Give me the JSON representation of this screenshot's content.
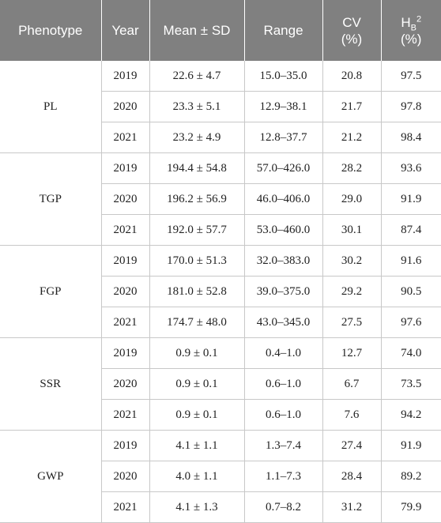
{
  "header": {
    "phenotype": "Phenotype",
    "year": "Year",
    "mean_sd": "Mean ± SD",
    "range": "Range",
    "cv_line1": "CV",
    "cv_line2": "(%)",
    "hb_base": "H",
    "hb_sub": "B",
    "hb_sup": "2",
    "hb_line2": "(%)"
  },
  "groups": [
    {
      "phenotype": "PL",
      "rows": [
        {
          "year": "2019",
          "mean": "22.6 ± 4.7",
          "range": "15.0–35.0",
          "cv": "20.8",
          "hb": "97.5"
        },
        {
          "year": "2020",
          "mean": "23.3 ± 5.1",
          "range": "12.9–38.1",
          "cv": "21.7",
          "hb": "97.8"
        },
        {
          "year": "2021",
          "mean": "23.2 ± 4.9",
          "range": "12.8–37.7",
          "cv": "21.2",
          "hb": "98.4"
        }
      ]
    },
    {
      "phenotype": "TGP",
      "rows": [
        {
          "year": "2019",
          "mean": "194.4 ± 54.8",
          "range": "57.0–426.0",
          "cv": "28.2",
          "hb": "93.6"
        },
        {
          "year": "2020",
          "mean": "196.2 ± 56.9",
          "range": "46.0–406.0",
          "cv": "29.0",
          "hb": "91.9"
        },
        {
          "year": "2021",
          "mean": "192.0 ± 57.7",
          "range": "53.0–460.0",
          "cv": "30.1",
          "hb": "87.4"
        }
      ]
    },
    {
      "phenotype": "FGP",
      "rows": [
        {
          "year": "2019",
          "mean": "170.0 ± 51.3",
          "range": "32.0–383.0",
          "cv": "30.2",
          "hb": "91.6"
        },
        {
          "year": "2020",
          "mean": "181.0 ± 52.8",
          "range": "39.0–375.0",
          "cv": "29.2",
          "hb": "90.5"
        },
        {
          "year": "2021",
          "mean": "174.7 ± 48.0",
          "range": "43.0–345.0",
          "cv": "27.5",
          "hb": "97.6"
        }
      ]
    },
    {
      "phenotype": "SSR",
      "rows": [
        {
          "year": "2019",
          "mean": "0.9 ± 0.1",
          "range": "0.4–1.0",
          "cv": "12.7",
          "hb": "74.0"
        },
        {
          "year": "2020",
          "mean": "0.9 ± 0.1",
          "range": "0.6–1.0",
          "cv": "6.7",
          "hb": "73.5"
        },
        {
          "year": "2021",
          "mean": "0.9 ± 0.1",
          "range": "0.6–1.0",
          "cv": "7.6",
          "hb": "94.2"
        }
      ]
    },
    {
      "phenotype": "GWP",
      "rows": [
        {
          "year": "2019",
          "mean": "4.1 ± 1.1",
          "range": "1.3–7.4",
          "cv": "27.4",
          "hb": "91.9"
        },
        {
          "year": "2020",
          "mean": "4.0 ± 1.1",
          "range": "1.1–7.3",
          "cv": "28.4",
          "hb": "89.2"
        },
        {
          "year": "2021",
          "mean": "4.1 ± 1.3",
          "range": "0.7–8.2",
          "cv": "31.2",
          "hb": "79.9"
        }
      ]
    }
  ]
}
